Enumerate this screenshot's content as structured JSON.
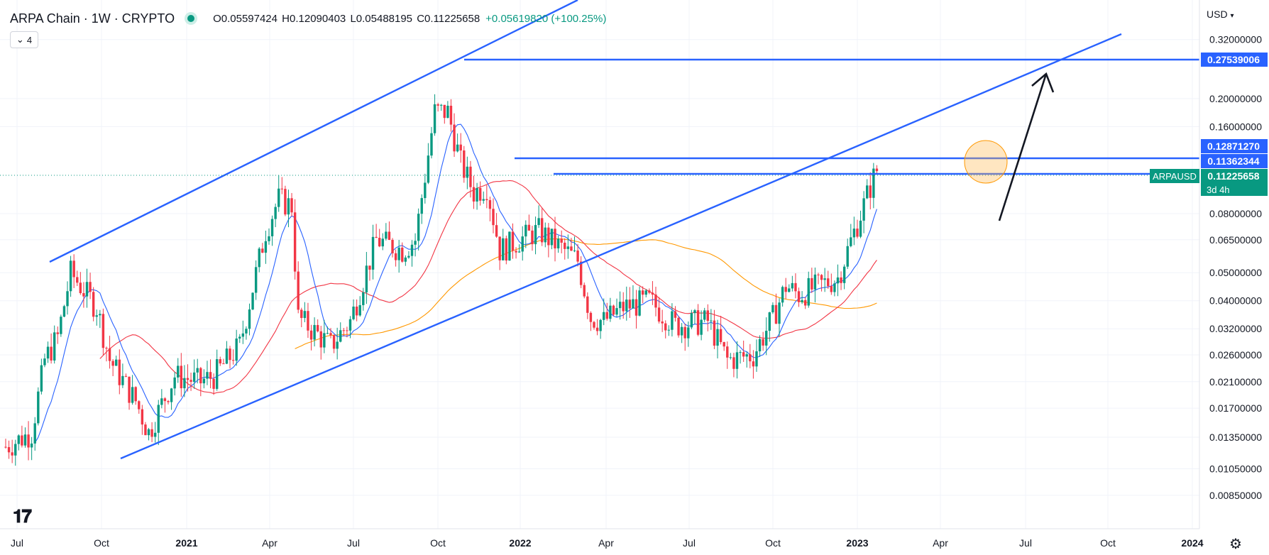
{
  "header": {
    "symbol": "ARPA Chain · 1W · CRYPTO",
    "open": "O0.05597424",
    "high": "H0.12090403",
    "low": "L0.05488195",
    "close": "C0.11225658",
    "change": "+0.05619820 (+100.25%)"
  },
  "indicator_count": "4",
  "currency": "USD",
  "chart_data": {
    "type": "candlestick",
    "scale": "log",
    "x_ticks": [
      "Jul",
      "Oct",
      "2021",
      "Apr",
      "Jul",
      "Oct",
      "2022",
      "Apr",
      "Jul",
      "Oct",
      "2023",
      "Apr",
      "Jul",
      "Oct",
      "2024"
    ],
    "y_ticks": [
      "0.32000000",
      "0.20000000",
      "0.16000000",
      "0.08000000",
      "0.06500000",
      "0.05000000",
      "0.04000000",
      "0.03200000",
      "0.02600000",
      "0.02100000",
      "0.01700000",
      "0.01350000",
      "0.01050000",
      "0.00850000"
    ],
    "price_labels": [
      {
        "value": "0.27539006",
        "color": "#2962ff"
      },
      {
        "value": "0.12871270",
        "color": "#2962ff"
      },
      {
        "value": "0.11362344",
        "color": "#2962ff"
      },
      {
        "value": "0.11225658",
        "color": "#089981",
        "tag": "ARPAUSD",
        "countdown": "3d 4h"
      }
    ],
    "ylim": [
      0.0075,
      0.37
    ],
    "colors": {
      "up": "#089981",
      "down": "#f23645",
      "ma_fast": "#2962ff",
      "ma_mid": "#f23645",
      "ma_slow": "#ff9800",
      "lines": "#2962ff"
    }
  }
}
